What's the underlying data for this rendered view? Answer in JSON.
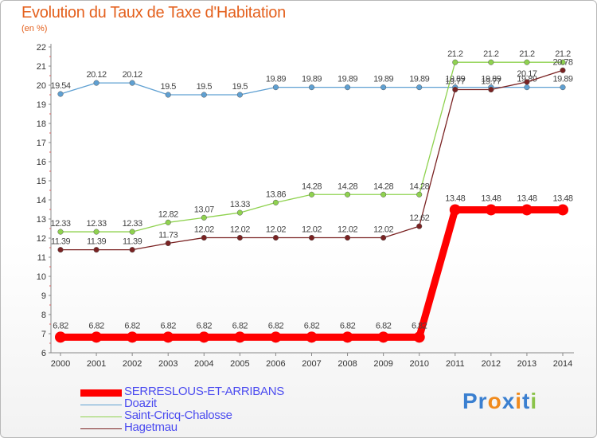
{
  "chart_data": {
    "type": "line",
    "title": "Evolution du Taux de Taxe d'Habitation",
    "subtitle": "(en %)",
    "categories": [
      "2000",
      "2001",
      "2002",
      "2003",
      "2004",
      "2005",
      "2006",
      "2007",
      "2008",
      "2009",
      "2010",
      "2011",
      "2012",
      "2013",
      "2014"
    ],
    "ylim": [
      6,
      22
    ],
    "yticks": [
      6,
      7,
      8,
      9,
      10,
      11,
      12,
      13,
      14,
      15,
      16,
      17,
      18,
      19,
      20,
      21,
      22
    ],
    "grid": false,
    "legend_position": "bottom-left",
    "series": [
      {
        "name": "SERRESLOUS-ET-ARRIBANS",
        "color": "#ff0000",
        "width": 9,
        "values": [
          6.82,
          6.82,
          6.82,
          6.82,
          6.82,
          6.82,
          6.82,
          6.82,
          6.82,
          6.82,
          6.82,
          13.48,
          13.48,
          13.48,
          13.48
        ],
        "labels": [
          "6.82",
          "6.82",
          "6.82",
          "6.82",
          "6.82",
          "6.82",
          "6.82",
          "6.82",
          "6.82",
          "6.82",
          "6.82",
          "13.48",
          "13.48",
          "13.48",
          "13.48"
        ]
      },
      {
        "name": "Doazit",
        "color": "#5fa0d2",
        "width": 1,
        "values": [
          19.54,
          20.12,
          20.12,
          19.5,
          19.5,
          19.5,
          19.89,
          19.89,
          19.89,
          19.89,
          19.89,
          19.89,
          19.89,
          19.89,
          19.89
        ],
        "labels": [
          "19.54",
          "20.12",
          "20.12",
          "19.5",
          "19.5",
          "19.5",
          "19.89",
          "19.89",
          "19.89",
          "19.89",
          "19.89",
          "19.89",
          "19.89",
          "19.89",
          "19.89"
        ]
      },
      {
        "name": "Saint-Cricq-Chalosse",
        "color": "#8fd24f",
        "width": 1,
        "values": [
          12.33,
          12.33,
          12.33,
          12.82,
          13.07,
          13.33,
          13.86,
          14.28,
          14.28,
          14.28,
          14.28,
          21.2,
          21.2,
          21.2,
          21.2
        ],
        "labels": [
          "12.33",
          "12.33",
          "12.33",
          "12.82",
          "13.07",
          "13.33",
          "13.86",
          "14.28",
          "14.28",
          "14.28",
          "14.28",
          "21.2",
          "21.2",
          "21.2",
          "21.2"
        ]
      },
      {
        "name": "Hagetmau",
        "color": "#7a2222",
        "width": 1,
        "values": [
          11.39,
          11.39,
          11.39,
          11.73,
          12.02,
          12.02,
          12.02,
          12.02,
          12.02,
          12.02,
          12.62,
          19.77,
          19.77,
          20.17,
          20.78
        ],
        "labels": [
          "11.39",
          "11.39",
          "11.39",
          "11.73",
          "12.02",
          "12.02",
          "12.02",
          "12.02",
          "12.02",
          "12.02",
          "12.62",
          "19.77",
          "19.77",
          "20.17",
          "20.78"
        ]
      }
    ]
  },
  "logo": {
    "text_p": "Pr",
    "text_o": "o",
    "text_x": "x",
    "text_i": "i",
    "text_t": "t",
    "text_i2": "i"
  }
}
